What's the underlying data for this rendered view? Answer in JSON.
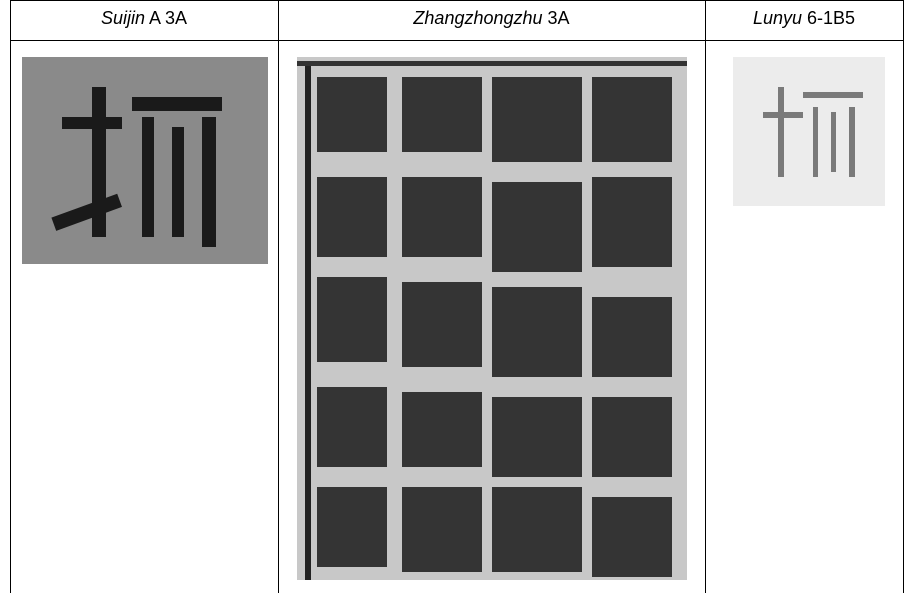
{
  "table": {
    "headers": [
      {
        "title": "Suijin",
        "label": "A 3A"
      },
      {
        "title": "Zhangzhongzhu",
        "label": "3A"
      },
      {
        "title": "Lunyu",
        "label": "6-1B5"
      }
    ]
  }
}
